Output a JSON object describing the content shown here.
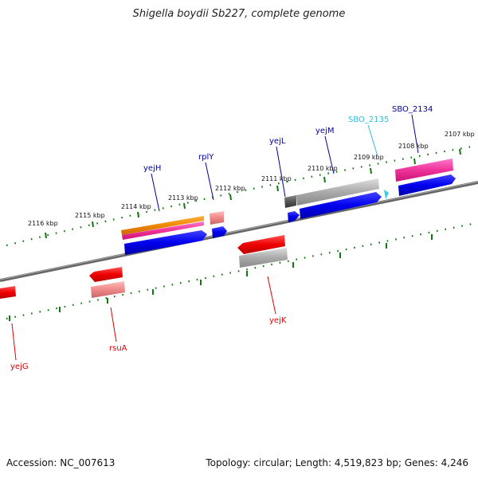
{
  "title": "Shigella boydii Sb227, complete genome",
  "footer": {
    "accession": "Accession: NC_007613",
    "summary": "Topology: circular; Length: 4,519,823 bp; Genes: 4,246"
  },
  "kbp_ticks": [
    "2116 kbp",
    "2115 kbp",
    "2114 kbp",
    "2113 kbp",
    "2112 kbp",
    "2111 kbp",
    "2110 kbp",
    "2109 kbp",
    "2108 kbp",
    "2107 kbp"
  ],
  "genes_top": [
    {
      "name": "yejH",
      "color": "#000099"
    },
    {
      "name": "rplY",
      "color": "#000099"
    },
    {
      "name": "yejL",
      "color": "#000099"
    },
    {
      "name": "yejM",
      "color": "#000099"
    },
    {
      "name": "SBO_2135",
      "color": "#33bbdd"
    },
    {
      "name": "SBO_2134",
      "color": "#000099"
    }
  ],
  "genes_bottom": [
    {
      "name": "yejG",
      "color": "#dd0000"
    },
    {
      "name": "rsuA",
      "color": "#dd0000"
    },
    {
      "name": "yejK",
      "color": "#dd0000"
    }
  ],
  "colors": {
    "backbone": "#777777",
    "tick": "#117711",
    "forward": "#0000ee",
    "reverse": "#ee0000",
    "orange": "#ee8800",
    "pink": "#ee3399",
    "lightred": "#ee8888",
    "grey": "#aaaaaa",
    "darkgrey": "#555555"
  }
}
